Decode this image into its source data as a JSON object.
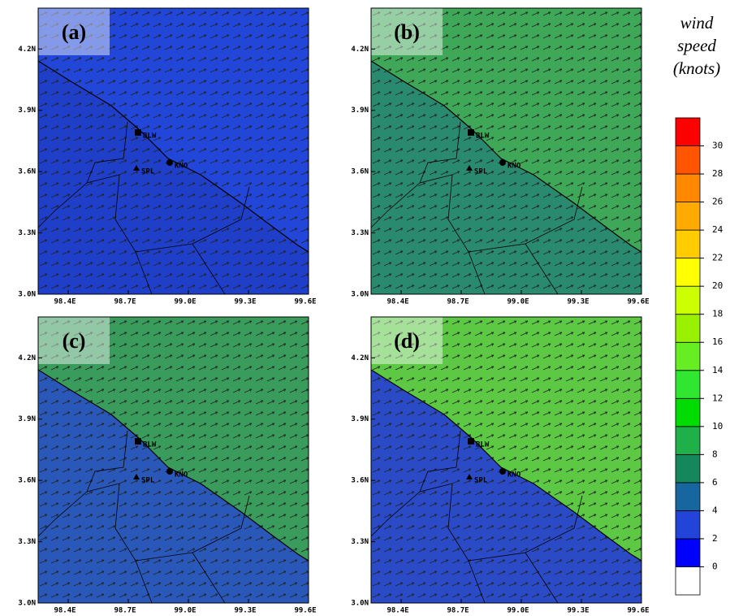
{
  "map": {
    "xlim": [
      98.25,
      99.6
    ],
    "ylim": [
      3.0,
      4.4
    ],
    "xticks": [
      {
        "value": 98.4,
        "label": "98.4E"
      },
      {
        "value": 98.7,
        "label": "98.7E"
      },
      {
        "value": 99.0,
        "label": "99.0E"
      },
      {
        "value": 99.3,
        "label": "99.3E"
      },
      {
        "value": 99.6,
        "label": "99.6E"
      }
    ],
    "yticks": [
      {
        "value": 3.0,
        "label": "3.0N"
      },
      {
        "value": 3.3,
        "label": "3.3N"
      },
      {
        "value": 3.6,
        "label": "3.6N"
      },
      {
        "value": 3.9,
        "label": "3.9N"
      },
      {
        "value": 4.2,
        "label": "4.2N"
      }
    ],
    "stations": [
      "BLW",
      "SPL",
      "KNO"
    ],
    "panels": [
      {
        "label": "(a)",
        "sea_color": "#2246d8",
        "land_color": "#1f3fc8"
      },
      {
        "label": "(b)",
        "sea_color": "#3fa858",
        "land_color": "#2a8a70"
      },
      {
        "label": "(c)",
        "sea_color": "#3a9c5c",
        "land_color": "#2a58b8"
      },
      {
        "label": "(d)",
        "sea_color": "#5cc844",
        "land_color": "#2a4ac6"
      }
    ]
  },
  "colorbar": {
    "title_lines": [
      "wind",
      "speed",
      "(knots)"
    ],
    "ylim": [
      -2,
      32
    ],
    "levels": [
      0,
      2,
      4,
      6,
      8,
      10,
      12,
      14,
      16,
      18,
      20,
      22,
      24,
      26,
      28,
      30
    ],
    "colors": [
      "#ffffff",
      "#0000ff",
      "#2244d8",
      "#1766a0",
      "#14885c",
      "#20b04a",
      "#00dc00",
      "#30e630",
      "#66ee22",
      "#99f000",
      "#ccff00",
      "#ffff00",
      "#ffcc00",
      "#ffaa00",
      "#ff8800",
      "#ff5500",
      "#ff0000"
    ]
  }
}
